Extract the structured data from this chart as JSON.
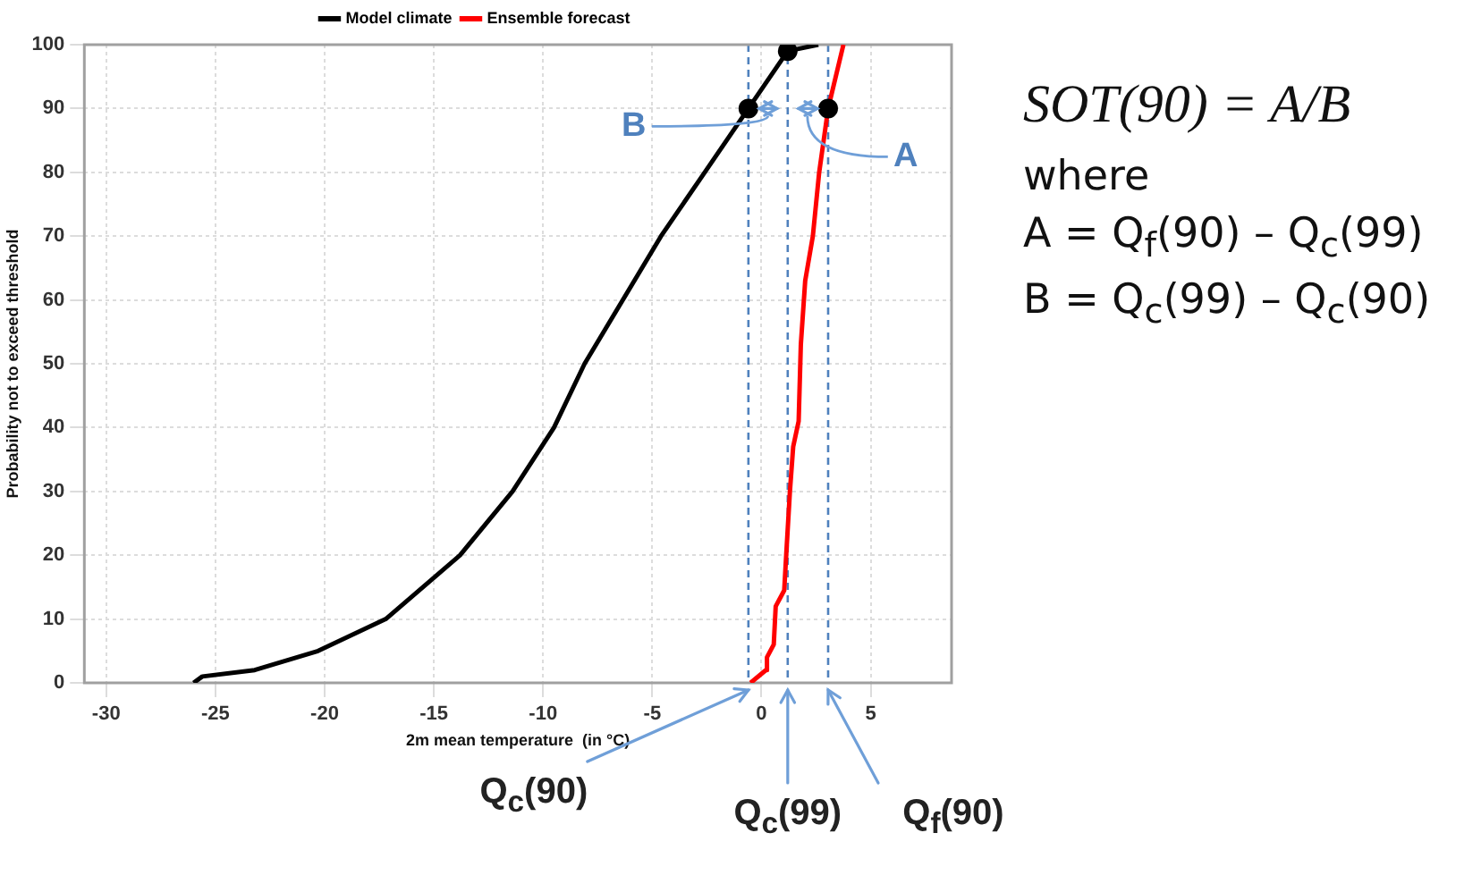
{
  "chart_data": {
    "type": "line",
    "xlabel": "2m mean temperature  (in °C)",
    "ylabel": "Probability not to exceed threshold",
    "xlim": [
      -31,
      8.7
    ],
    "ylim": [
      0,
      100
    ],
    "xticks": [
      -30,
      -25,
      -20,
      -15,
      -10,
      -5,
      0,
      5
    ],
    "yticks": [
      0,
      10,
      20,
      30,
      40,
      50,
      60,
      70,
      80,
      90,
      100
    ],
    "grid": true,
    "legend": "top",
    "line_style": "solid",
    "series": [
      {
        "name": "Model climate",
        "color": "#000000",
        "type": "line",
        "marker": "none",
        "x": [
          -26.0,
          -25.6,
          -23.2,
          -20.3,
          -17.2,
          -13.8,
          -11.4,
          -9.5,
          -8.1,
          -4.6,
          -2.6,
          -0.6,
          1.2,
          2.6
        ],
        "values": [
          0,
          1,
          2,
          5,
          10,
          20,
          30,
          40,
          50,
          70,
          80,
          90,
          99,
          100
        ]
      },
      {
        "name": "Ensemble forecast",
        "color": "#ff0000",
        "type": "line",
        "marker": "none",
        "x": [
          -0.5,
          0.2,
          0.25,
          0.56,
          0.65,
          1.04,
          1.13,
          1.3,
          1.45,
          1.7,
          1.8,
          2.0,
          2.35,
          2.64,
          3.05,
          3.4,
          3.75
        ],
        "values": [
          0,
          2,
          4,
          6,
          12,
          14.5,
          20,
          30,
          37,
          41,
          53,
          63,
          70,
          80,
          90,
          95,
          100
        ]
      },
      {
        "color": "#000000",
        "type": "scatter",
        "marker": "circle",
        "x": [
          -0.6,
          1.2,
          3.05
        ],
        "values": [
          90,
          99,
          90
        ]
      }
    ],
    "ref_lines": [
      {
        "axis": "x",
        "value": -0.6,
        "label": "Q$_{c}$(90)",
        "color": "#4f81bd",
        "line_style": "dashed"
      },
      {
        "axis": "x",
        "value": 1.2,
        "label": "Q$_{c}$(99)",
        "color": "#4f81bd",
        "line_style": "dashed"
      },
      {
        "axis": "x",
        "value": 3.05,
        "label": "Q$_{f}$(90)",
        "color": "#4f81bd",
        "line_style": "dashed"
      }
    ],
    "annotations": [
      {
        "text": "B",
        "x": 0.3,
        "y": 90
      },
      {
        "text": "A",
        "x": 2.1,
        "y": 90
      },
      "SOT(90) = A/B",
      "where",
      "A = Q$_{f}$(90) – Q$_{c}$(99)",
      "B = Q$_{c}$(99) – Q$_{c}$(90)"
    ]
  }
}
